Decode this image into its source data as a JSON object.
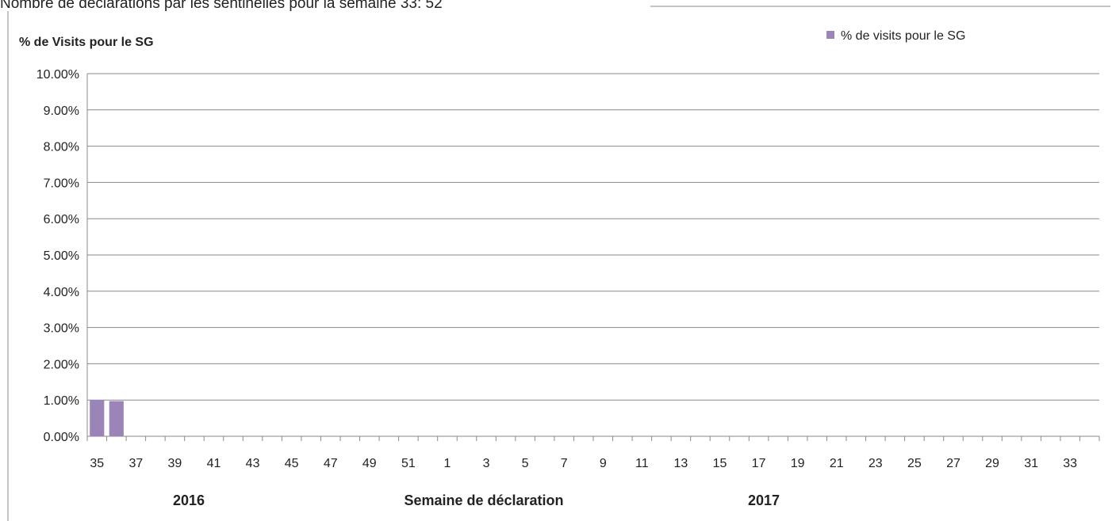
{
  "header": "Nombre de déclarations par les sentinelles pour la semaine 33: 52",
  "chart_data": {
    "type": "bar",
    "y_axis_title": "% de Visits pour le SG",
    "x_axis_label": "Semaine de déclaration",
    "year_labels": [
      "2016",
      "2017"
    ],
    "categories": [
      "35",
      null,
      "37",
      null,
      "39",
      null,
      "41",
      null,
      "43",
      null,
      "45",
      null,
      "47",
      null,
      "49",
      null,
      "51",
      null,
      "1",
      null,
      "3",
      null,
      "5",
      null,
      "7",
      null,
      "9",
      null,
      "11",
      null,
      "13",
      null,
      "15",
      null,
      "17",
      null,
      "19",
      null,
      "21",
      null,
      "23",
      null,
      "25",
      null,
      "27",
      null,
      "29",
      null,
      "31",
      null,
      "33",
      null
    ],
    "series": [
      {
        "name": "% de visits pour le SG",
        "color": "#9b85b8",
        "values": [
          1.0,
          0.97,
          0,
          0,
          0,
          0,
          0,
          0,
          0,
          0,
          0,
          0,
          0,
          0,
          0,
          0,
          0,
          0,
          0,
          0,
          0,
          0,
          0,
          0,
          0,
          0,
          0,
          0,
          0,
          0,
          0,
          0,
          0,
          0,
          0,
          0,
          0,
          0,
          0,
          0,
          0,
          0,
          0,
          0,
          0,
          0,
          0,
          0,
          0,
          0,
          0,
          0
        ]
      }
    ],
    "ylim": [
      0,
      10
    ],
    "yticks": [
      {
        "value": 0,
        "label": "0.00%"
      },
      {
        "value": 1,
        "label": "1.00%"
      },
      {
        "value": 2,
        "label": "2.00%"
      },
      {
        "value": 3,
        "label": "3.00%"
      },
      {
        "value": 4,
        "label": "4.00%"
      },
      {
        "value": 5,
        "label": "5.00%"
      },
      {
        "value": 6,
        "label": "6.00%"
      },
      {
        "value": 7,
        "label": "7.00%"
      },
      {
        "value": 8,
        "label": "8.00%"
      },
      {
        "value": 9,
        "label": "9.00%"
      },
      {
        "value": 10,
        "label": "10.00%"
      }
    ],
    "grid": true,
    "legend": "top-right"
  }
}
